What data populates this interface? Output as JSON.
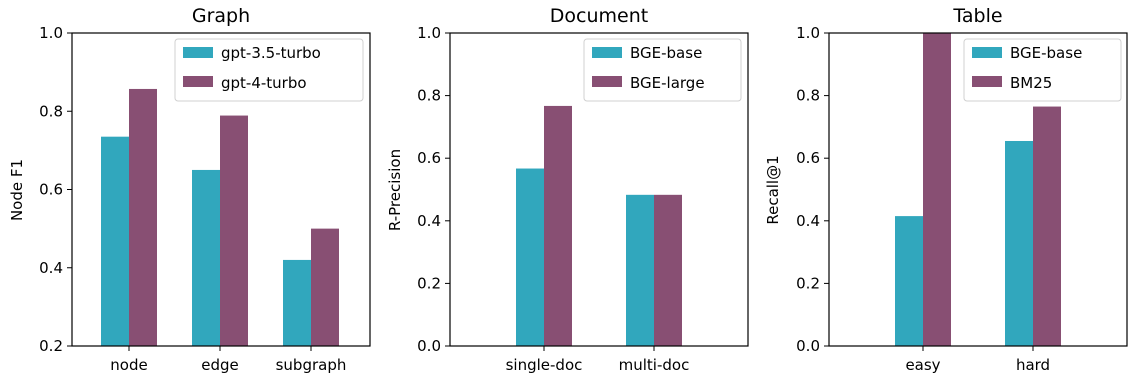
{
  "chart_data": [
    {
      "type": "bar",
      "title": "Graph",
      "xlabel": "",
      "ylabel": "Node F1",
      "ylim": [
        0.2,
        1.0
      ],
      "yticks": [
        "0.2",
        "0.4",
        "0.6",
        "0.8",
        "1.0"
      ],
      "ytick_values": [
        0.2,
        0.4,
        0.6,
        0.8,
        1.0
      ],
      "categories": [
        "node",
        "edge",
        "subgraph"
      ],
      "series": [
        {
          "name": "gpt-3.5-turbo",
          "values": [
            0.735,
            0.65,
            0.42
          ]
        },
        {
          "name": "gpt-4-turbo",
          "values": [
            0.857,
            0.789,
            0.5
          ]
        }
      ],
      "legend": "top-right",
      "grid": false
    },
    {
      "type": "bar",
      "title": "Document",
      "xlabel": "",
      "ylabel": "R-Precision",
      "ylim": [
        0.0,
        1.0
      ],
      "yticks": [
        "0.0",
        "0.2",
        "0.4",
        "0.6",
        "0.8",
        "1.0"
      ],
      "ytick_values": [
        0.0,
        0.2,
        0.4,
        0.6,
        0.8,
        1.0
      ],
      "categories": [
        "single-doc",
        "multi-doc"
      ],
      "series": [
        {
          "name": "BGE-base",
          "values": [
            0.567,
            0.483
          ]
        },
        {
          "name": "BGE-large",
          "values": [
            0.767,
            0.483
          ]
        }
      ],
      "legend": "top-right",
      "grid": false
    },
    {
      "type": "bar",
      "title": "Table",
      "xlabel": "",
      "ylabel": "Recall@1",
      "ylim": [
        0.0,
        1.0
      ],
      "yticks": [
        "0.0",
        "0.2",
        "0.4",
        "0.6",
        "0.8",
        "1.0"
      ],
      "ytick_values": [
        0.0,
        0.2,
        0.4,
        0.6,
        0.8,
        1.0
      ],
      "categories": [
        "easy",
        "hard"
      ],
      "series": [
        {
          "name": "BGE-base",
          "values": [
            0.415,
            0.655
          ]
        },
        {
          "name": "BM25",
          "values": [
            1.0,
            0.765
          ]
        }
      ],
      "legend": "top-right",
      "grid": false
    }
  ],
  "colors": {
    "series": [
      "#31a7bd",
      "#884f73"
    ],
    "axis": "#000000",
    "legend_border": "#d0d0d0"
  }
}
